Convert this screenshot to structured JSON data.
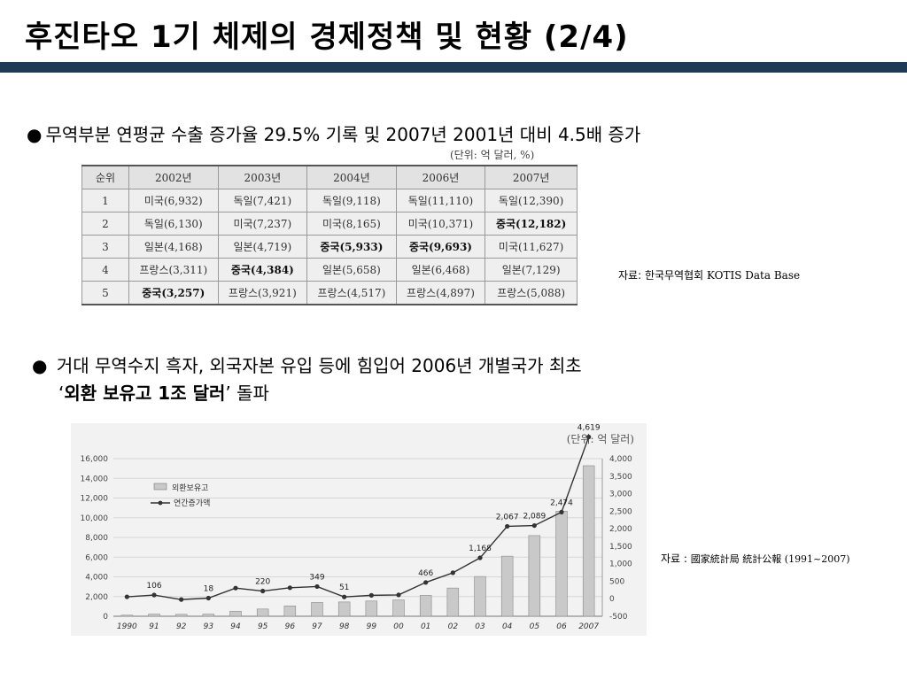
{
  "title": "후진타오 1기 체제의 경제정책 및 현황 (2/4)",
  "bullet1": {
    "symbol": "●",
    "text": "무역부분 연평균 수출 증가율 29.5% 기록 및 2007년 2001년 대비 4.5배 증가"
  },
  "trade_table": {
    "unit": "(단위: 억 달러, %)",
    "headers": [
      "순위",
      "2002년",
      "2003년",
      "2004년",
      "2006년",
      "2007년"
    ],
    "rows": [
      [
        "1",
        "미국(6,932)",
        "독일(7,421)",
        "독일(9,118)",
        "독일(11,110)",
        "독일(12,390)"
      ],
      [
        "2",
        "독일(6,130)",
        "미국(7,237)",
        "미국(8,165)",
        "미국(10,371)",
        "중국(12,182)"
      ],
      [
        "3",
        "일본(4,168)",
        "일본(4,719)",
        "중국(5,933)",
        "중국(9,693)",
        "미국(11,627)"
      ],
      [
        "4",
        "프랑스(3,311)",
        "중국(4,384)",
        "일본(5,658)",
        "일본(6,468)",
        "일본(7,129)"
      ],
      [
        "5",
        "중국(3,257)",
        "프랑스(3,921)",
        "프랑스(4,517)",
        "프랑스(4,897)",
        "프랑스(5,088)"
      ]
    ],
    "source_label": "자료: 한국무역협회",
    "source_db": "KOTIS Data Base"
  },
  "bullet2": {
    "symbol": "●",
    "line1": "거대 무역수지 흑자, 외국자본 유입 등에 힘입어 2006년 개별국가 최초",
    "quote_open": "‘",
    "bold": "외환 보유고 1조 달러",
    "quote_close": "’",
    "tail": " 돌파"
  },
  "chart_source": {
    "label": "자료 :",
    "text": "國家統計局 統計公報 (1991~2007)"
  },
  "chart_data": {
    "type": "bar",
    "unit": "(단위: 억 달러)",
    "categories": [
      "1990",
      "91",
      "92",
      "93",
      "94",
      "95",
      "96",
      "97",
      "98",
      "99",
      "00",
      "01",
      "02",
      "03",
      "04",
      "05",
      "06",
      "2007"
    ],
    "series": [
      {
        "name": "외환보유고",
        "type": "bar",
        "axis": "left",
        "values": [
          111,
          217,
          194,
          212,
          516,
          736,
          1050,
          1399,
          1450,
          1547,
          1656,
          2122,
          2864,
          4033,
          6099,
          8189,
          10663,
          15282
        ]
      },
      {
        "name": "연간증가액",
        "type": "line",
        "axis": "right",
        "values": [
          55,
          106,
          -23,
          18,
          304,
          220,
          314,
          349,
          51,
          97,
          109,
          466,
          742,
          1168,
          2067,
          2089,
          2474,
          4619
        ]
      }
    ],
    "data_labels": [
      {
        "index": 1,
        "text": "106"
      },
      {
        "index": 3,
        "text": "18"
      },
      {
        "index": 5,
        "text": "220"
      },
      {
        "index": 7,
        "text": "349"
      },
      {
        "index": 8,
        "text": "51"
      },
      {
        "index": 11,
        "text": "466"
      },
      {
        "index": 13,
        "text": "1,168"
      },
      {
        "index": 14,
        "text": "2,067"
      },
      {
        "index": 15,
        "text": "2,089"
      },
      {
        "index": 16,
        "text": "2,474"
      },
      {
        "index": 17,
        "text": "4,619"
      }
    ],
    "y_left_ticks": [
      "0",
      "2,000",
      "4,000",
      "6,000",
      "8,000",
      "10,000",
      "12,000",
      "14,000",
      "16,000"
    ],
    "y_right_ticks": [
      "-500",
      "0",
      "500",
      "1,000",
      "1,500",
      "2,000",
      "2,500",
      "3,000",
      "3,500",
      "4,000"
    ],
    "ylim_left": [
      0,
      16000
    ],
    "ylim_right": [
      -500,
      4000
    ],
    "legend_position": "top-left",
    "grid": true,
    "colors": {
      "bar": "#c9c9c9",
      "line": "#333333"
    }
  }
}
